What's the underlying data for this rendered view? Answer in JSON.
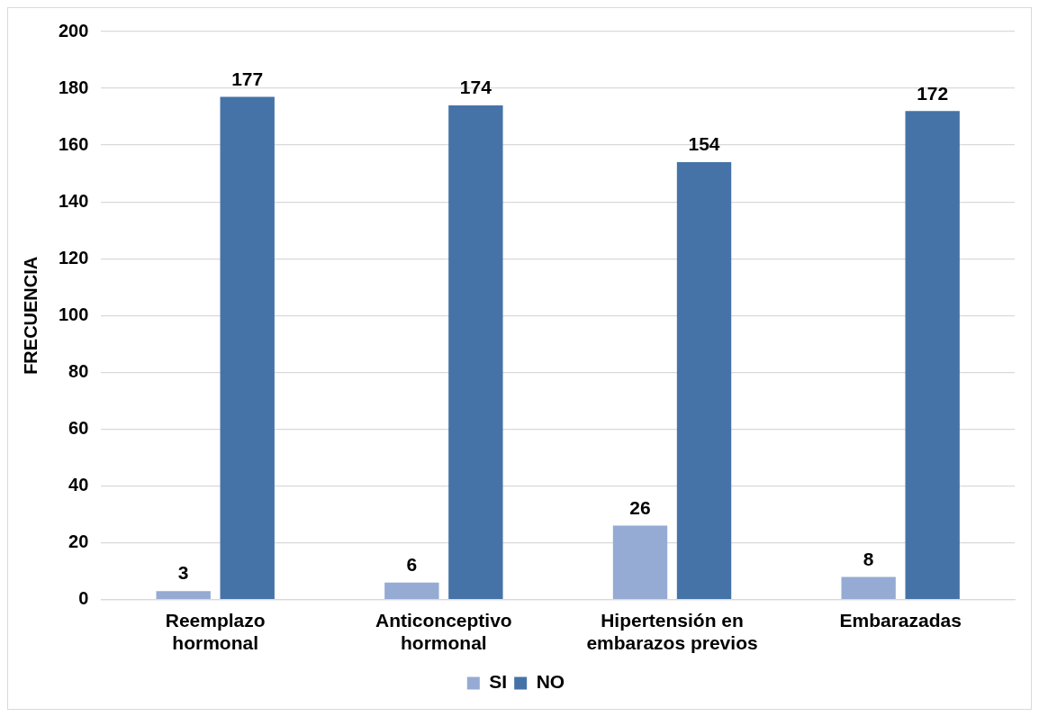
{
  "chart_data": {
    "type": "bar",
    "ylabel": "FRECUENCIA",
    "categories": [
      "Reemplazo hormonal",
      "Anticonceptivo hormonal",
      "Hipertensión en embarazos previos",
      "Embarazadas"
    ],
    "series": [
      {
        "name": "SI",
        "color": "#95abd3",
        "values": [
          3,
          6,
          26,
          8
        ]
      },
      {
        "name": "NO",
        "color": "#4573a7",
        "values": [
          177,
          174,
          154,
          172
        ]
      }
    ],
    "ylim": [
      0,
      200
    ],
    "yticks": [
      0,
      20,
      40,
      60,
      80,
      100,
      120,
      140,
      160,
      180,
      200
    ],
    "grid": "y",
    "legend": "bottom",
    "data_labels": true
  }
}
